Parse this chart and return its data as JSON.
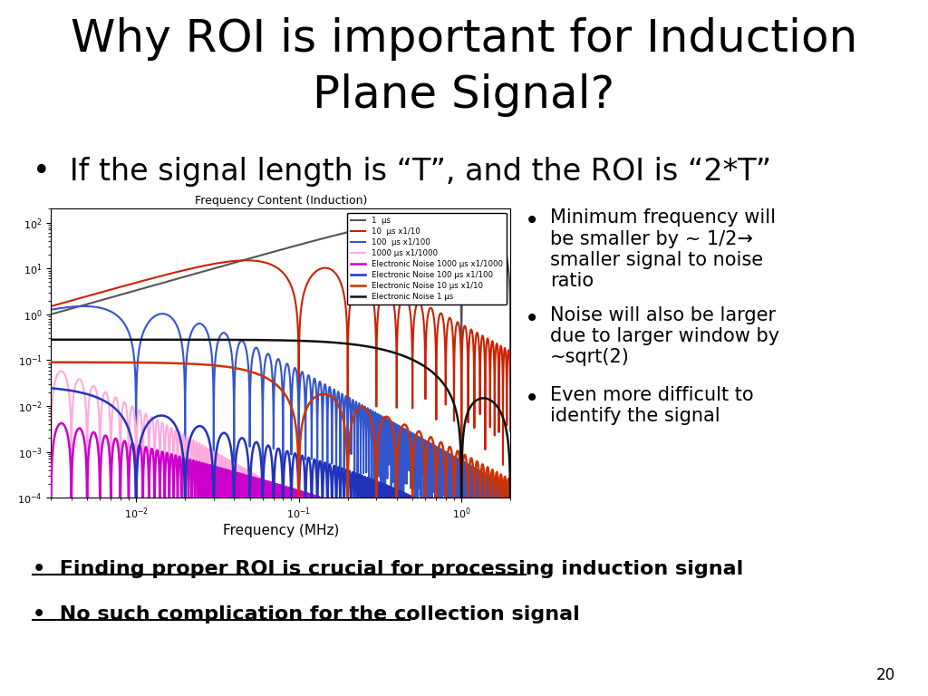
{
  "title_line1": "Why ROI is important for Induction",
  "title_line2": "Plane Signal?",
  "title_fontsize": 36,
  "bullet1": "If the signal length is “T”, and the ROI is “2*T”",
  "bullet1_fontsize": 24,
  "plot_title": "Frequency Content (Induction)",
  "xlabel": "Frequency (MHz)",
  "right_bullets": [
    "Minimum frequency will\nbe smaller by ~ 1/2→\nsmaller signal to noise\nratio",
    "Noise will also be larger\ndue to larger window by\n~sqrt(2)",
    "Even more difficult to\nidentify the signal"
  ],
  "bottom_bullets": [
    "Finding proper ROI is crucial for processing induction signal",
    "No such complication for the collection signal"
  ],
  "page_number": "20",
  "signal_entries": [
    {
      "label": "1  μs",
      "color": "#555555",
      "lw": 1.5,
      "T_us": 1,
      "scale": 1.0,
      "peak": 100.0
    },
    {
      "label": "10  μs x1/10",
      "color": "#cc2200",
      "lw": 1.5,
      "T_us": 10,
      "scale": 0.1,
      "peak": 15.0
    },
    {
      "label": "100  μs x1/100",
      "color": "#3355cc",
      "lw": 1.5,
      "T_us": 100,
      "scale": 0.01,
      "peak": 1.5
    },
    {
      "label": "1000 μs x1/1000",
      "color": "#ffaadd",
      "lw": 1.5,
      "T_us": 1000,
      "scale": 0.001,
      "peak": 0.15
    }
  ],
  "noise_entries": [
    {
      "label": "Electronic Noise 1000 μs x1/1000",
      "color": "#cc00cc",
      "lw": 1.8,
      "T_us": 1000,
      "level": 0.01
    },
    {
      "label": "Electronic Noise 100 μs x1/100",
      "color": "#2233bb",
      "lw": 1.8,
      "T_us": 100,
      "level": 0.028
    },
    {
      "label": "Electronic Noise 10 μs x1/10",
      "color": "#cc3300",
      "lw": 1.8,
      "T_us": 10,
      "level": 0.09
    },
    {
      "label": "Electronic Noise 1 μs",
      "color": "#111111",
      "lw": 1.8,
      "T_us": 1,
      "level": 0.28
    }
  ],
  "bg_color": "#ffffff",
  "xlim": [
    0.003,
    2.0
  ],
  "ylim": [
    0.0001,
    200
  ]
}
